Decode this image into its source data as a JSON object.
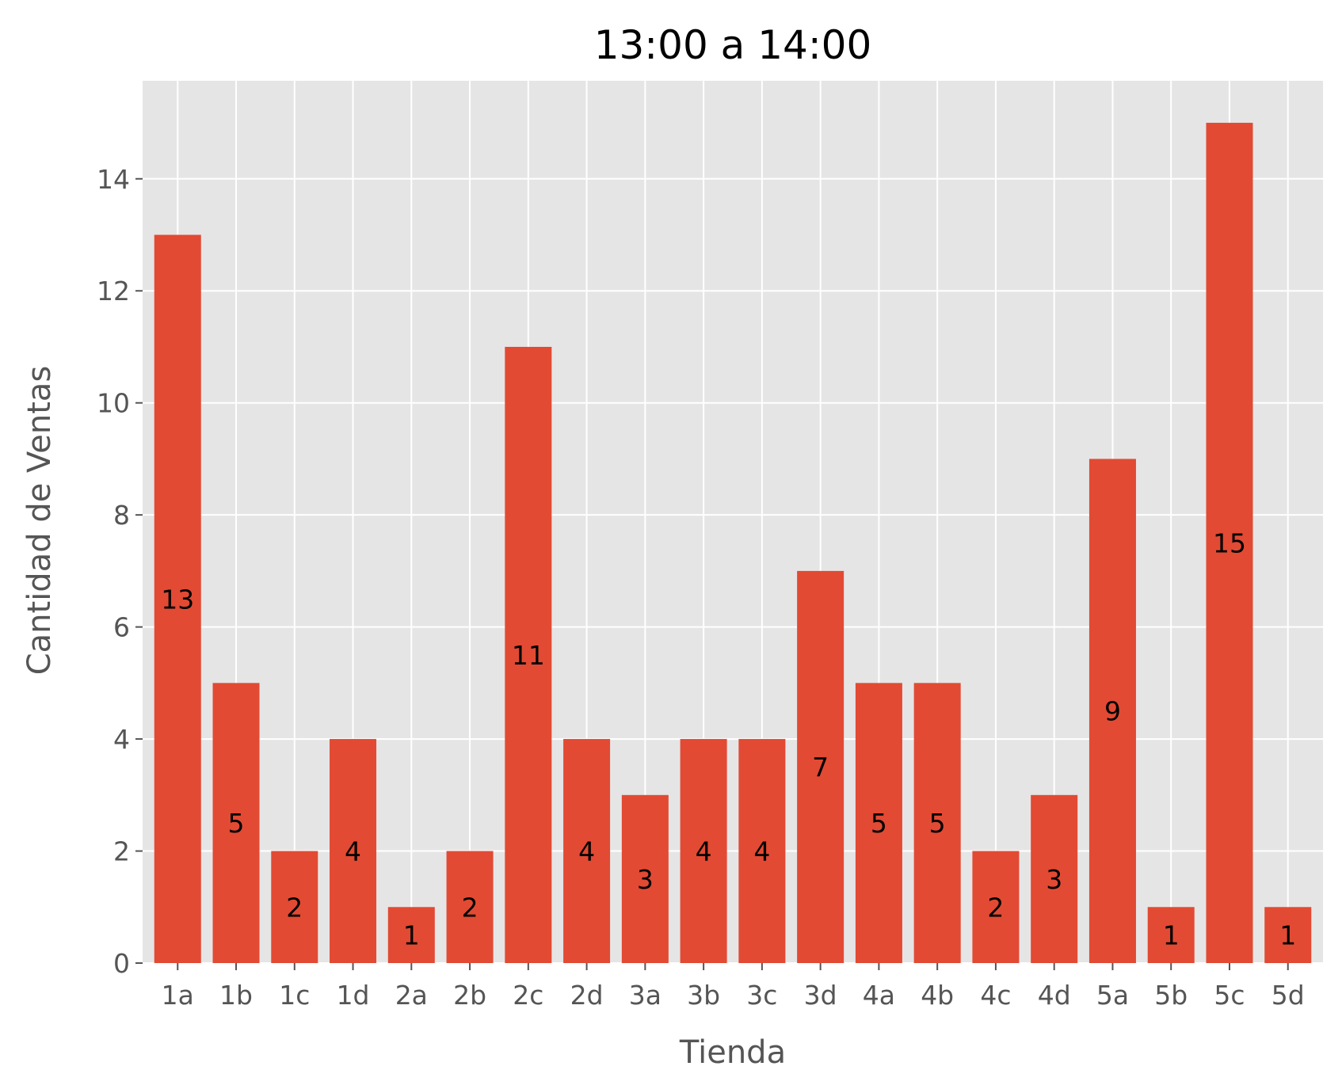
{
  "chart_data": {
    "type": "bar",
    "title": "13:00 a 14:00",
    "xlabel": "Tienda",
    "ylabel": "Cantidad de Ventas",
    "categories": [
      "1a",
      "1b",
      "1c",
      "1d",
      "2a",
      "2b",
      "2c",
      "2d",
      "3a",
      "3b",
      "3c",
      "3d",
      "4a",
      "4b",
      "4c",
      "4d",
      "5a",
      "5b",
      "5c",
      "5d"
    ],
    "values": [
      13,
      5,
      2,
      4,
      1,
      2,
      11,
      4,
      3,
      4,
      4,
      7,
      5,
      5,
      2,
      3,
      9,
      1,
      15,
      1
    ],
    "bar_labels": [
      "13",
      "5",
      "2",
      "4",
      "1",
      "2",
      "11",
      "4",
      "3",
      "4",
      "4",
      "7",
      "5",
      "5",
      "2",
      "3",
      "9",
      "1",
      "15",
      "1"
    ],
    "ylim": [
      0,
      15.75
    ],
    "yticks": [
      0,
      2,
      4,
      6,
      8,
      10,
      12,
      14
    ],
    "ytick_labels": [
      "0",
      "2",
      "4",
      "6",
      "8",
      "10",
      "12",
      "14"
    ],
    "grid": true,
    "colors": {
      "bar": "#E24A33",
      "plot_background": "#E5E5E5",
      "grid": "#FFFFFF"
    }
  }
}
